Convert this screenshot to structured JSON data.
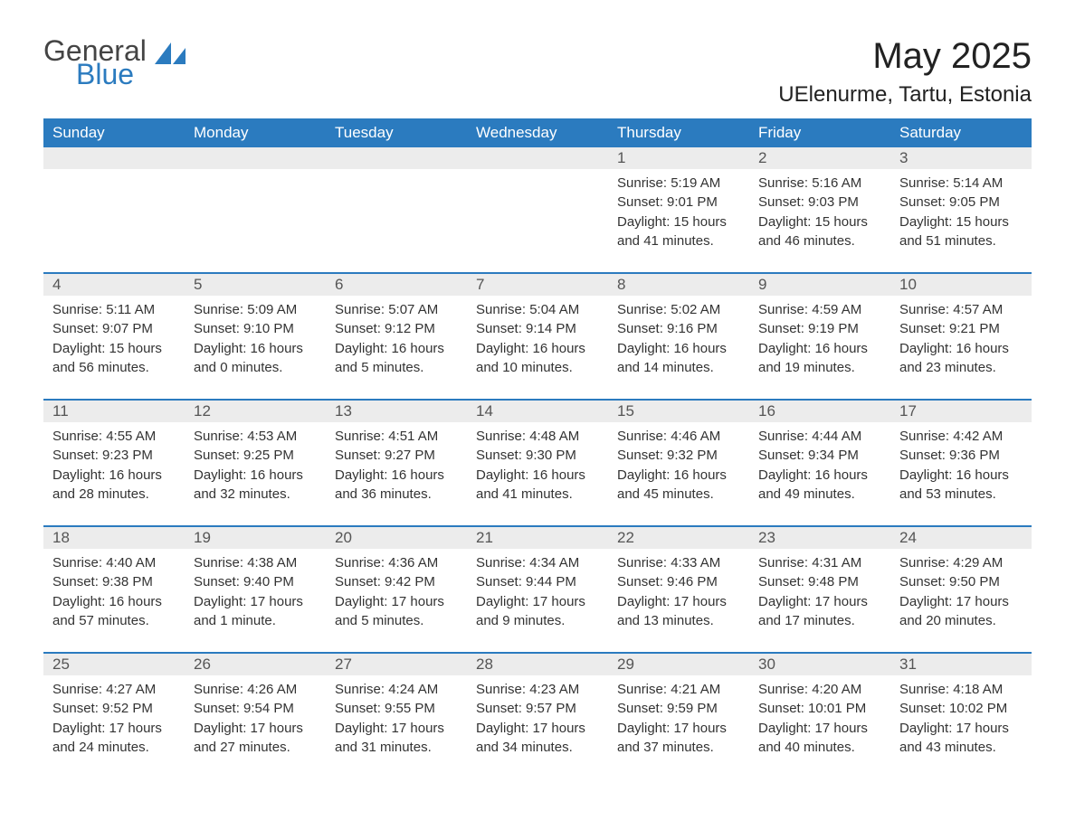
{
  "logo": {
    "general": "General",
    "blue": "Blue",
    "sail_color": "#2b7bbf"
  },
  "title": "May 2025",
  "location": "UElenurme, Tartu, Estonia",
  "colors": {
    "header_bg": "#2b7bbf",
    "header_text": "#ffffff",
    "daynum_bg": "#ececec",
    "daynum_text": "#555555",
    "body_text": "#333333",
    "rule": "#2b7bbf",
    "background": "#ffffff"
  },
  "fonts": {
    "title_size": 40,
    "location_size": 24,
    "weekday_size": 17,
    "daynum_size": 17,
    "content_size": 15
  },
  "weekdays": [
    "Sunday",
    "Monday",
    "Tuesday",
    "Wednesday",
    "Thursday",
    "Friday",
    "Saturday"
  ],
  "weeks": [
    [
      null,
      null,
      null,
      null,
      {
        "n": "1",
        "sunrise": "Sunrise: 5:19 AM",
        "sunset": "Sunset: 9:01 PM",
        "dl1": "Daylight: 15 hours",
        "dl2": "and 41 minutes."
      },
      {
        "n": "2",
        "sunrise": "Sunrise: 5:16 AM",
        "sunset": "Sunset: 9:03 PM",
        "dl1": "Daylight: 15 hours",
        "dl2": "and 46 minutes."
      },
      {
        "n": "3",
        "sunrise": "Sunrise: 5:14 AM",
        "sunset": "Sunset: 9:05 PM",
        "dl1": "Daylight: 15 hours",
        "dl2": "and 51 minutes."
      }
    ],
    [
      {
        "n": "4",
        "sunrise": "Sunrise: 5:11 AM",
        "sunset": "Sunset: 9:07 PM",
        "dl1": "Daylight: 15 hours",
        "dl2": "and 56 minutes."
      },
      {
        "n": "5",
        "sunrise": "Sunrise: 5:09 AM",
        "sunset": "Sunset: 9:10 PM",
        "dl1": "Daylight: 16 hours",
        "dl2": "and 0 minutes."
      },
      {
        "n": "6",
        "sunrise": "Sunrise: 5:07 AM",
        "sunset": "Sunset: 9:12 PM",
        "dl1": "Daylight: 16 hours",
        "dl2": "and 5 minutes."
      },
      {
        "n": "7",
        "sunrise": "Sunrise: 5:04 AM",
        "sunset": "Sunset: 9:14 PM",
        "dl1": "Daylight: 16 hours",
        "dl2": "and 10 minutes."
      },
      {
        "n": "8",
        "sunrise": "Sunrise: 5:02 AM",
        "sunset": "Sunset: 9:16 PM",
        "dl1": "Daylight: 16 hours",
        "dl2": "and 14 minutes."
      },
      {
        "n": "9",
        "sunrise": "Sunrise: 4:59 AM",
        "sunset": "Sunset: 9:19 PM",
        "dl1": "Daylight: 16 hours",
        "dl2": "and 19 minutes."
      },
      {
        "n": "10",
        "sunrise": "Sunrise: 4:57 AM",
        "sunset": "Sunset: 9:21 PM",
        "dl1": "Daylight: 16 hours",
        "dl2": "and 23 minutes."
      }
    ],
    [
      {
        "n": "11",
        "sunrise": "Sunrise: 4:55 AM",
        "sunset": "Sunset: 9:23 PM",
        "dl1": "Daylight: 16 hours",
        "dl2": "and 28 minutes."
      },
      {
        "n": "12",
        "sunrise": "Sunrise: 4:53 AM",
        "sunset": "Sunset: 9:25 PM",
        "dl1": "Daylight: 16 hours",
        "dl2": "and 32 minutes."
      },
      {
        "n": "13",
        "sunrise": "Sunrise: 4:51 AM",
        "sunset": "Sunset: 9:27 PM",
        "dl1": "Daylight: 16 hours",
        "dl2": "and 36 minutes."
      },
      {
        "n": "14",
        "sunrise": "Sunrise: 4:48 AM",
        "sunset": "Sunset: 9:30 PM",
        "dl1": "Daylight: 16 hours",
        "dl2": "and 41 minutes."
      },
      {
        "n": "15",
        "sunrise": "Sunrise: 4:46 AM",
        "sunset": "Sunset: 9:32 PM",
        "dl1": "Daylight: 16 hours",
        "dl2": "and 45 minutes."
      },
      {
        "n": "16",
        "sunrise": "Sunrise: 4:44 AM",
        "sunset": "Sunset: 9:34 PM",
        "dl1": "Daylight: 16 hours",
        "dl2": "and 49 minutes."
      },
      {
        "n": "17",
        "sunrise": "Sunrise: 4:42 AM",
        "sunset": "Sunset: 9:36 PM",
        "dl1": "Daylight: 16 hours",
        "dl2": "and 53 minutes."
      }
    ],
    [
      {
        "n": "18",
        "sunrise": "Sunrise: 4:40 AM",
        "sunset": "Sunset: 9:38 PM",
        "dl1": "Daylight: 16 hours",
        "dl2": "and 57 minutes."
      },
      {
        "n": "19",
        "sunrise": "Sunrise: 4:38 AM",
        "sunset": "Sunset: 9:40 PM",
        "dl1": "Daylight: 17 hours",
        "dl2": "and 1 minute."
      },
      {
        "n": "20",
        "sunrise": "Sunrise: 4:36 AM",
        "sunset": "Sunset: 9:42 PM",
        "dl1": "Daylight: 17 hours",
        "dl2": "and 5 minutes."
      },
      {
        "n": "21",
        "sunrise": "Sunrise: 4:34 AM",
        "sunset": "Sunset: 9:44 PM",
        "dl1": "Daylight: 17 hours",
        "dl2": "and 9 minutes."
      },
      {
        "n": "22",
        "sunrise": "Sunrise: 4:33 AM",
        "sunset": "Sunset: 9:46 PM",
        "dl1": "Daylight: 17 hours",
        "dl2": "and 13 minutes."
      },
      {
        "n": "23",
        "sunrise": "Sunrise: 4:31 AM",
        "sunset": "Sunset: 9:48 PM",
        "dl1": "Daylight: 17 hours",
        "dl2": "and 17 minutes."
      },
      {
        "n": "24",
        "sunrise": "Sunrise: 4:29 AM",
        "sunset": "Sunset: 9:50 PM",
        "dl1": "Daylight: 17 hours",
        "dl2": "and 20 minutes."
      }
    ],
    [
      {
        "n": "25",
        "sunrise": "Sunrise: 4:27 AM",
        "sunset": "Sunset: 9:52 PM",
        "dl1": "Daylight: 17 hours",
        "dl2": "and 24 minutes."
      },
      {
        "n": "26",
        "sunrise": "Sunrise: 4:26 AM",
        "sunset": "Sunset: 9:54 PM",
        "dl1": "Daylight: 17 hours",
        "dl2": "and 27 minutes."
      },
      {
        "n": "27",
        "sunrise": "Sunrise: 4:24 AM",
        "sunset": "Sunset: 9:55 PM",
        "dl1": "Daylight: 17 hours",
        "dl2": "and 31 minutes."
      },
      {
        "n": "28",
        "sunrise": "Sunrise: 4:23 AM",
        "sunset": "Sunset: 9:57 PM",
        "dl1": "Daylight: 17 hours",
        "dl2": "and 34 minutes."
      },
      {
        "n": "29",
        "sunrise": "Sunrise: 4:21 AM",
        "sunset": "Sunset: 9:59 PM",
        "dl1": "Daylight: 17 hours",
        "dl2": "and 37 minutes."
      },
      {
        "n": "30",
        "sunrise": "Sunrise: 4:20 AM",
        "sunset": "Sunset: 10:01 PM",
        "dl1": "Daylight: 17 hours",
        "dl2": "and 40 minutes."
      },
      {
        "n": "31",
        "sunrise": "Sunrise: 4:18 AM",
        "sunset": "Sunset: 10:02 PM",
        "dl1": "Daylight: 17 hours",
        "dl2": "and 43 minutes."
      }
    ]
  ]
}
